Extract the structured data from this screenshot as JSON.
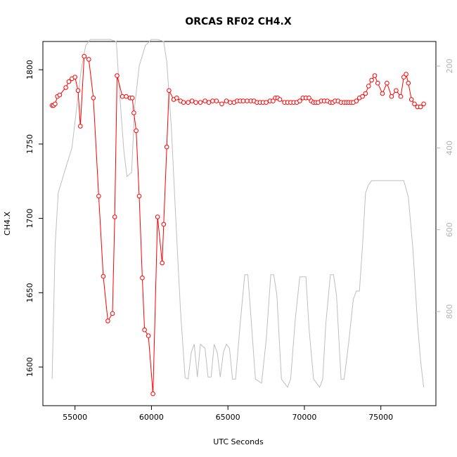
{
  "chart_data": {
    "type": "line",
    "title": "ORCAS RF02 CH4.X",
    "xlabel": "UTC Seconds",
    "ylabel": "CH4.X",
    "xlim": [
      52900,
      78600
    ],
    "ylim": [
      1574,
      1819
    ],
    "y2lim": [
      1030,
      140
    ],
    "x_ticks": [
      55000,
      60000,
      65000,
      70000,
      75000
    ],
    "y_ticks": [
      1600,
      1650,
      1700,
      1750,
      1800
    ],
    "y2_ticks": [
      200,
      400,
      600,
      800
    ],
    "grid": false,
    "legend": "none",
    "colors": {
      "ch4": "#ff0000",
      "secondary": "#bebebe",
      "axes": "#000000",
      "secondary_ticks": "#b3b3b3"
    },
    "series": [
      {
        "color": "#ff0000",
        "marker": "open-circle",
        "axis": "left",
        "x": [
          53500,
          53600,
          53700,
          53850,
          54000,
          54400,
          54600,
          54800,
          55000,
          55200,
          55350,
          55600,
          55900,
          56200,
          56550,
          56850,
          57150,
          57450,
          57600,
          57750,
          58100,
          58350,
          58600,
          58750,
          58850,
          59000,
          59200,
          59400,
          59550,
          59800,
          60100,
          60400,
          60700,
          60800,
          61000,
          61150,
          61450,
          61650,
          61900,
          62100,
          62400,
          62650,
          62900,
          63200,
          63500,
          63750,
          64000,
          64250,
          64600,
          64900,
          65150,
          65400,
          65600,
          65800,
          66000,
          66250,
          66500,
          66700,
          66900,
          67100,
          67300,
          67500,
          67750,
          67950,
          68100,
          68250,
          68400,
          68700,
          68900,
          69100,
          69300,
          69500,
          69700,
          69900,
          70100,
          70300,
          70450,
          70600,
          70750,
          70900,
          71100,
          71300,
          71500,
          71700,
          71850,
          72000,
          72200,
          72400,
          72600,
          72750,
          72900,
          73050,
          73200,
          73400,
          73600,
          73800,
          74000,
          74200,
          74400,
          74600,
          74800,
          75100,
          75400,
          75700,
          76000,
          76300,
          76500,
          76650,
          76800,
          77000,
          77200,
          77400,
          77600,
          77800
        ],
        "y": [
          1776,
          1776,
          1777,
          1782,
          1783,
          1788,
          1792,
          1794,
          1795,
          1786,
          1762,
          1809,
          1807,
          1781,
          1715,
          1661,
          1631,
          1636,
          1701,
          1796,
          1782,
          1782,
          1781,
          1781,
          1771,
          1759,
          1715,
          1660,
          1625,
          1621,
          1582,
          1701,
          1670,
          1696,
          1748,
          1786,
          1780,
          1781,
          1779,
          1778,
          1778,
          1779,
          1778,
          1778,
          1779,
          1778,
          1779,
          1779,
          1777,
          1779,
          1778,
          1778,
          1779,
          1779,
          1779,
          1779,
          1779,
          1779,
          1778,
          1778,
          1778,
          1778,
          1779,
          1779,
          1781,
          1781,
          1780,
          1778,
          1778,
          1778,
          1778,
          1778,
          1779,
          1781,
          1781,
          1781,
          1779,
          1778,
          1778,
          1778,
          1779,
          1779,
          1779,
          1778,
          1778,
          1779,
          1779,
          1778,
          1778,
          1778,
          1778,
          1778,
          1778,
          1779,
          1781,
          1782,
          1784,
          1789,
          1793,
          1796,
          1791,
          1784,
          1791,
          1782,
          1786,
          1782,
          1795,
          1797,
          1791,
          1780,
          1777,
          1775,
          1775,
          1777
        ]
      },
      {
        "color": "#bebebe",
        "marker": "none",
        "axis": "right",
        "x": [
          53500,
          53700,
          53900,
          54300,
          54800,
          55400,
          55700,
          56000,
          56500,
          56900,
          57300,
          57700,
          57900,
          58200,
          58400,
          58700,
          58900,
          59200,
          59600,
          60000,
          60400,
          60800,
          61000,
          61300,
          61600,
          61900,
          62200,
          62400,
          62600,
          62800,
          63000,
          63200,
          63500,
          63700,
          63900,
          64100,
          64300,
          64500,
          64700,
          64900,
          65100,
          65300,
          65500,
          65800,
          66100,
          66300,
          66500,
          66800,
          67200,
          67500,
          67800,
          68000,
          68200,
          68500,
          68900,
          69100,
          69400,
          69700,
          69900,
          70100,
          70300,
          70600,
          71000,
          71200,
          71400,
          71700,
          71900,
          72100,
          72400,
          72600,
          72900,
          73200,
          73400,
          73600,
          73800,
          74000,
          74200,
          74400,
          74600,
          75000,
          75400,
          75800,
          76200,
          76500,
          76800,
          77100,
          77400,
          77600,
          77800
        ],
        "y": [
          965,
          640,
          510,
          460,
          400,
          210,
          150,
          135,
          135,
          135,
          135,
          140,
          260,
          410,
          470,
          460,
          300,
          200,
          150,
          135,
          135,
          140,
          190,
          350,
          580,
          800,
          962,
          965,
          900,
          880,
          960,
          880,
          890,
          960,
          960,
          880,
          900,
          960,
          900,
          880,
          890,
          965,
          965,
          830,
          710,
          710,
          810,
          965,
          975,
          870,
          710,
          710,
          760,
          965,
          985,
          965,
          820,
          715,
          715,
          715,
          840,
          965,
          985,
          965,
          830,
          710,
          710,
          760,
          965,
          965,
          875,
          770,
          750,
          750,
          640,
          510,
          490,
          480,
          480,
          480,
          480,
          480,
          480,
          480,
          520,
          650,
          830,
          920,
          985
        ]
      }
    ]
  }
}
